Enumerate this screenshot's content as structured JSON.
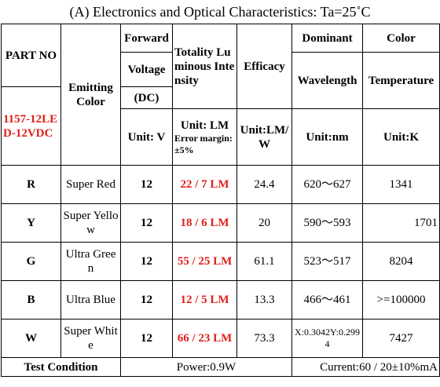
{
  "title": "(A) Electronics and Optical Characteristics: Ta=25˚C",
  "header": {
    "part_no": "PART NO",
    "part_number": "1157-12LED-12VDC",
    "emitting_color": "Emitting Color",
    "forward": "Forward",
    "voltage": "Voltage",
    "dc": "(DC)",
    "unit_v": "Unit: V",
    "luminous": "Totality Luminous Intensity",
    "unit_lm": "Unit: LM",
    "error_margin": "Error margin:±5%",
    "efficacy": "Efficacy",
    "unit_lmw": "Unit:LM/W",
    "dominant": "Dominant",
    "wavelength": "Wavelength",
    "unit_nm": "Unit:nm",
    "color": "Color",
    "temperature": "Temperature",
    "unit_k": "Unit:K"
  },
  "rows": [
    [
      "R",
      "Super Red",
      "12",
      "22 / 7 LM",
      "24.4",
      "620～627",
      "1341"
    ],
    [
      "Y",
      "Super Yellow",
      "12",
      "18 / 6 LM",
      "20",
      "590～593",
      "1701"
    ],
    [
      "G",
      "Ultra Green",
      "12",
      "55 / 25 LM",
      "61.1",
      "523～517",
      "8204"
    ],
    [
      "B",
      "Ultra Blue",
      "12",
      "12 / 5 LM",
      "13.3",
      "466～461",
      ">=100000"
    ],
    [
      "W",
      "Super White",
      "12",
      "66 / 23 LM",
      "73.3",
      "X:0.3042Y:0.2994",
      "7427"
    ]
  ],
  "footer": {
    "label": "Test Condition",
    "power": "Power:0.9W",
    "current": "Current:60 / 20±10%mA"
  }
}
